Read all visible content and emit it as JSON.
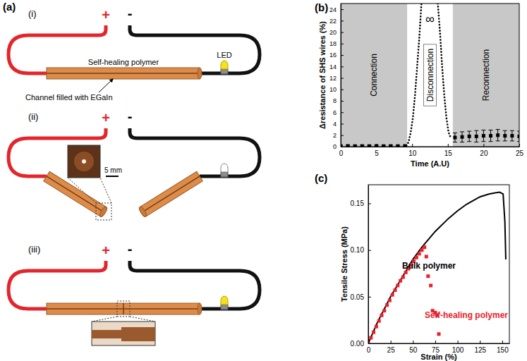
{
  "diagram": {
    "label": "(a)",
    "subpanels": [
      {
        "label": "(i)",
        "terminals": [
          "+",
          "-"
        ],
        "annotations": [
          "Self-healing polymer",
          "Channel filled with EGaIn",
          "LED"
        ]
      },
      {
        "label": "(ii)",
        "terminals": [
          "+",
          "-"
        ],
        "annotations": [
          "5 mm"
        ]
      },
      {
        "label": "(iii)",
        "terminals": [
          "+",
          "-"
        ]
      }
    ]
  },
  "chart_data": [
    {
      "type": "line",
      "title": "(b)",
      "x_label": "Time (A.U)",
      "y_label": "Δresistance of SHS wires (%)",
      "xlim": [
        0,
        25
      ],
      "ylim": [
        0,
        25
      ],
      "xticks": [
        0,
        5,
        10,
        15,
        20,
        25
      ],
      "yticks": [
        0,
        2,
        4,
        6,
        8,
        10,
        12,
        14,
        16,
        18,
        20,
        22,
        24
      ],
      "regions": [
        {
          "label": "Connection",
          "x": [
            0,
            9.3
          ],
          "color": "#c8c8c8"
        },
        {
          "label": "Reconnection",
          "x": [
            15.7,
            25
          ],
          "color": "#c8c8c8"
        }
      ],
      "annotations": [
        "Disconnection",
        "∞"
      ],
      "series": [
        {
          "color": "#000000",
          "marker": "square",
          "line_style": "none",
          "x": [
            0,
            1,
            2,
            3,
            4,
            5,
            6,
            7,
            8,
            9
          ],
          "values": [
            0.1,
            0.12,
            0.1,
            0.11,
            0.1,
            0.12,
            0.1,
            0.11,
            0.1,
            0.12
          ],
          "errors": [
            0.15,
            0.15,
            0.15,
            0.15,
            0.15,
            0.15,
            0.15,
            0.15,
            0.15,
            0.15
          ]
        },
        {
          "color": "#000000",
          "marker": "none",
          "line_style": "dotted",
          "x": [
            9.2,
            9.5,
            9.8,
            10.1,
            10.4,
            10.7,
            11.0,
            11.3,
            12.5,
            13.6,
            13.9,
            14.2,
            14.5,
            14.8,
            15.1,
            15.4
          ],
          "values": [
            0.2,
            0.8,
            2.5,
            5,
            9,
            14,
            19,
            25,
            null,
            25,
            20,
            14,
            9,
            5,
            2.5,
            1.6
          ]
        },
        {
          "color": "#000000",
          "marker": "square",
          "line_style": "none",
          "x": [
            16,
            17,
            18,
            19,
            20,
            21,
            22,
            23,
            24,
            25
          ],
          "values": [
            1.6,
            1.7,
            1.8,
            1.8,
            1.9,
            1.9,
            2.0,
            1.9,
            1.9,
            1.8
          ],
          "errors": [
            0.8,
            0.9,
            0.9,
            1.0,
            1.0,
            1.0,
            1.0,
            0.9,
            0.9,
            0.9
          ]
        }
      ]
    },
    {
      "type": "line",
      "title": "(c)",
      "x_label": "Strain (%)",
      "y_label": "Tensile Stress (MPa)",
      "xlim": [
        0,
        158
      ],
      "ylim": [
        0,
        0.17
      ],
      "xticks": [
        0,
        25,
        50,
        75,
        100,
        125,
        150
      ],
      "yticks": [
        {
          "value": 0,
          "label": "0.00"
        },
        {
          "value": 0.05,
          "label": "0.05"
        },
        {
          "value": 0.1,
          "label": "0.10"
        },
        {
          "value": 0.15,
          "label": "0.15"
        }
      ],
      "series": [
        {
          "name": "Bulk polymer",
          "color": "#000000",
          "marker": "none",
          "line_style": "solid",
          "x": [
            0,
            10,
            25,
            40,
            50,
            60,
            75,
            90,
            100,
            110,
            125,
            135,
            140,
            147,
            151,
            153,
            154
          ],
          "values": [
            0,
            0.022,
            0.05,
            0.074,
            0.09,
            0.103,
            0.12,
            0.134,
            0.142,
            0.149,
            0.157,
            0.16,
            0.161,
            0.162,
            0.16,
            0.13,
            0.09
          ]
        },
        {
          "name": "Self-healing polymer",
          "color": "#e8222a",
          "marker": "square",
          "line_style": "none",
          "x": [
            0,
            3,
            6,
            9,
            12,
            15,
            18,
            21,
            24,
            27,
            30,
            33,
            36,
            39,
            42,
            45,
            48,
            51,
            54,
            57,
            60,
            63,
            65,
            67,
            70,
            72,
            75,
            77,
            79
          ],
          "values": [
            0,
            0.006,
            0.012,
            0.018,
            0.024,
            0.03,
            0.035,
            0.041,
            0.046,
            0.052,
            0.057,
            0.062,
            0.067,
            0.071,
            0.076,
            0.08,
            0.084,
            0.088,
            0.092,
            0.096,
            0.1,
            0.103,
            0.093,
            0.072,
            0.062,
            0.035,
            0.033,
            0.03,
            0.01
          ]
        }
      ]
    }
  ]
}
